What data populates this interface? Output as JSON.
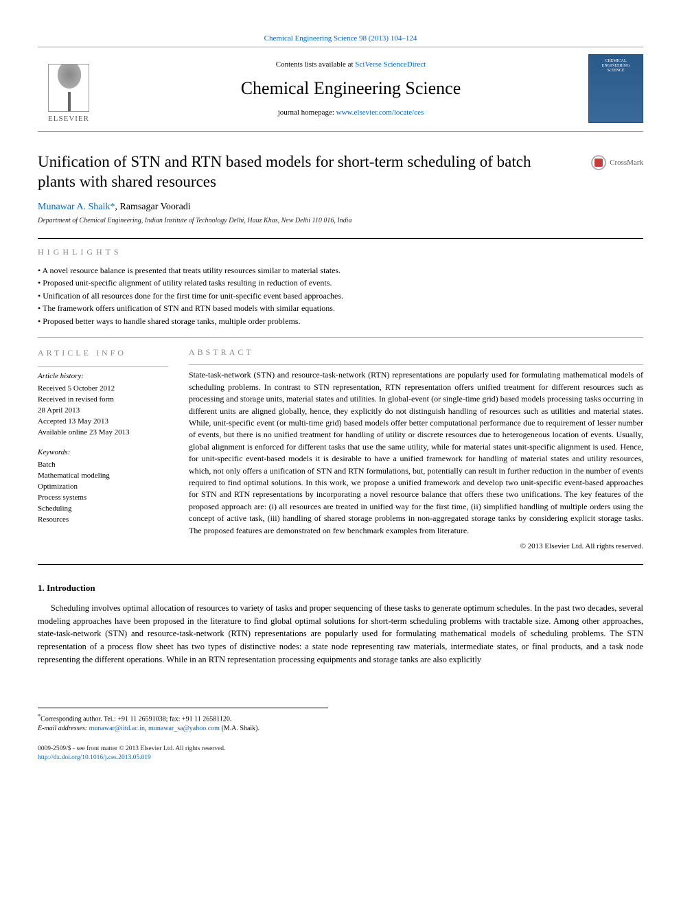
{
  "top_link": {
    "label": "Chemical Engineering Science 98 (2013) 104–124",
    "href": "#"
  },
  "publisher_logo": {
    "name": "ELSEVIER"
  },
  "header": {
    "contents_prefix": "Contents lists available at ",
    "contents_link": "SciVerse ScienceDirect",
    "journal_name": "Chemical Engineering Science",
    "homepage_prefix": "journal homepage: ",
    "homepage_link": "www.elsevier.com/locate/ces"
  },
  "cover": {
    "line1": "CHEMICAL",
    "line2": "ENGINEERING",
    "line3": "SCIENCE"
  },
  "title": "Unification of STN and RTN based models for short-term scheduling of batch plants with shared resources",
  "crossmark": "CrossMark",
  "authors": {
    "a1": "Munawar A. Shaik",
    "a1_mark": "*",
    "sep": ", ",
    "a2": "Ramsagar Vooradi"
  },
  "affiliation": "Department of Chemical Engineering, Indian Institute of Technology Delhi, Hauz Khas, New Delhi 110 016, India",
  "highlights_head": "HIGHLIGHTS",
  "highlights": [
    "A novel resource balance is presented that treats utility resources similar to material states.",
    "Proposed unit-specific alignment of utility related tasks resulting in reduction of events.",
    "Unification of all resources done for the first time for unit-specific event based approaches.",
    "The framework offers unification of STN and RTN based models with similar equations.",
    "Proposed better ways to handle shared storage tanks, multiple order problems."
  ],
  "article_info_head": "article info",
  "abstract_head": "abstract",
  "history_title": "Article history:",
  "history": {
    "l1": "Received 5 October 2012",
    "l2": "Received in revised form",
    "l3": "28 April 2013",
    "l4": "Accepted 13 May 2013",
    "l5": "Available online 23 May 2013"
  },
  "keywords_title": "Keywords:",
  "keywords": [
    "Batch",
    "Mathematical modeling",
    "Optimization",
    "Process systems",
    "Scheduling",
    "Resources"
  ],
  "abstract": "State-task-network (STN) and resource-task-network (RTN) representations are popularly used for formulating mathematical models of scheduling problems. In contrast to STN representation, RTN representation offers unified treatment for different resources such as processing and storage units, material states and utilities. In global-event (or single-time grid) based models processing tasks occurring in different units are aligned globally, hence, they explicitly do not distinguish handling of resources such as utilities and material states. While, unit-specific event (or multi-time grid) based models offer better computational performance due to requirement of lesser number of events, but there is no unified treatment for handling of utility or discrete resources due to heterogeneous location of events. Usually, global alignment is enforced for different tasks that use the same utility, while for material states unit-specific alignment is used. Hence, for unit-specific event-based models it is desirable to have a unified framework for handling of material states and utility resources, which, not only offers a unification of STN and RTN formulations, but, potentially can result in further reduction in the number of events required to find optimal solutions. In this work, we propose a unified framework and develop two unit-specific event-based approaches for STN and RTN representations by incorporating a novel resource balance that offers these two unifications. The key features of the proposed approach are: (i) all resources are treated in unified way for the first time, (ii) simplified handling of multiple orders using the concept of active task, (iii) handling of shared storage problems in non-aggregated storage tanks by considering explicit storage tasks. The proposed features are demonstrated on few benchmark examples from literature.",
  "abstract_copyright": "© 2013 Elsevier Ltd. All rights reserved.",
  "intro_head": "1.  Introduction",
  "intro_text": "Scheduling involves optimal allocation of resources to variety of tasks and proper sequencing of these tasks to generate optimum schedules. In the past two decades, several modeling approaches have been proposed in the literature to find global optimal solutions for short-term scheduling problems with tractable size. Among other approaches, state-task-network (STN) and resource-task-network (RTN) representations are popularly used for formulating mathematical models of scheduling problems. The STN representation of a process flow sheet has two types of distinctive nodes: a state node representing raw materials, intermediate states, or final products, and a task node representing the different operations. While in an RTN representation processing equipments and storage tanks are also explicitly",
  "footnote": {
    "mark": "*",
    "corr": "Corresponding author. Tel.: +91 11 26591038; fax: +91 11 26581120.",
    "email_label": "E-mail addresses: ",
    "email1": "munawar@iitd.ac.in",
    "email_sep": ", ",
    "email2": "munawar_sa@yahoo.com",
    "email_who": " (M.A. Shaik)."
  },
  "footer": {
    "l1": "0009-2509/$ - see front matter © 2013 Elsevier Ltd. All rights reserved.",
    "l2_prefix": "",
    "doi": "http://dx.doi.org/10.1016/j.ces.2013.05.019"
  },
  "colors": {
    "link": "#0066cc",
    "text": "#000000",
    "muted": "#888888",
    "cover_bg": "#2a5a8a",
    "crossmark_red": "#c83c3c"
  },
  "typography": {
    "title_fontsize": 23,
    "journal_fontsize": 26,
    "body_fontsize": 12,
    "small_fontsize": 11
  }
}
